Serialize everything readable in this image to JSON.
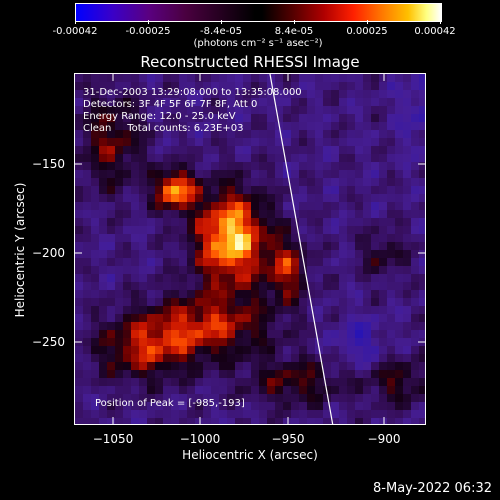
{
  "colorbar": {
    "ticks": [
      "-0.00042",
      "-0.00025",
      "-8.4e-05",
      "8.4e-05",
      "0.00025",
      "0.00042"
    ],
    "units": "(photons cm⁻² s⁻¹ asec⁻²)"
  },
  "title": "Reconstructed RHESSI Image",
  "info": {
    "time": "31-Dec-2003 13:29:08.000 to 13:35:08.000",
    "detectors": "Detectors: 3F 4F 5F 6F 7F 8F, Att 0",
    "energy": "Energy Range: 12.0 - 25.0 keV",
    "clean": "Clean     Total counts: 6.23E+03",
    "peak": "Position of Peak = [-985,-193]"
  },
  "axes": {
    "xlabel": "Heliocentric X (arcsec)",
    "ylabel": "Heliocentric Y (arcsec)",
    "xticks": [
      "−1050",
      "−1000",
      "−950",
      "−900"
    ],
    "yticks": [
      "−150",
      "−200",
      "−250"
    ]
  },
  "timestamp": "8-May-2022 06:32"
}
